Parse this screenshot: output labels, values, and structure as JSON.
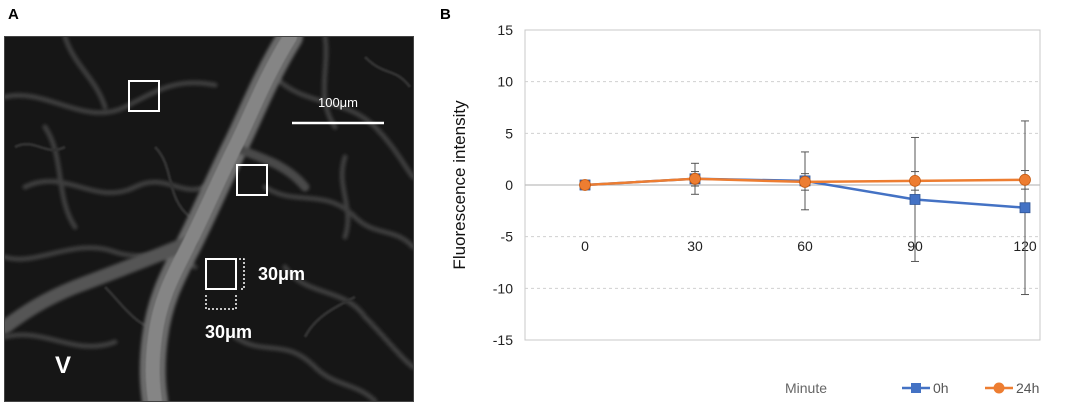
{
  "panels": {
    "a_label": "A",
    "b_label": "B"
  },
  "micrograph": {
    "scale_bar_label": "100μm",
    "roi_width_label": "30μm",
    "roi_height_label": "30μm",
    "vessel_label": "V"
  },
  "chart_data": {
    "type": "line",
    "title": "",
    "xlabel": "Minute",
    "ylabel": "Fluorescence intensity",
    "categories": [
      "0",
      "30",
      "60",
      "90",
      "120"
    ],
    "ylim": [
      -15,
      15
    ],
    "yticks": [
      -15,
      -10,
      -5,
      0,
      5,
      10,
      15
    ],
    "grid": true,
    "legend_position": "bottom-right",
    "series": [
      {
        "name": "0h",
        "color": "#4472C4",
        "marker": "square",
        "values": [
          0,
          0.6,
          0.4,
          -1.4,
          -2.2
        ],
        "error": [
          0.3,
          1.5,
          2.8,
          6.0,
          8.4
        ]
      },
      {
        "name": "24h",
        "color": "#ED7D31",
        "marker": "circle",
        "values": [
          0,
          0.6,
          0.3,
          0.4,
          0.5
        ],
        "error": [
          0.3,
          0.7,
          0.8,
          0.9,
          0.9
        ]
      }
    ]
  }
}
